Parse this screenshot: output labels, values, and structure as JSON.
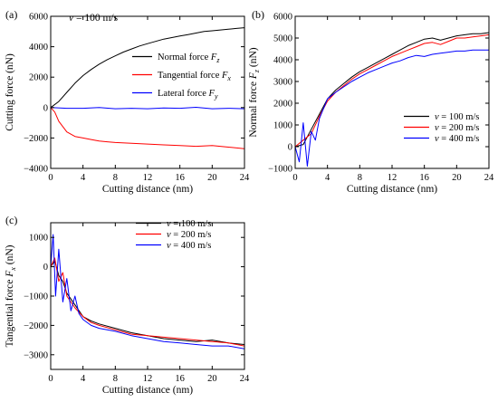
{
  "chart_data": [
    {
      "panel": "(a)",
      "type": "line",
      "annotation": "v = 100 m/s",
      "xlabel": "Cutting distance (nm)",
      "ylabel": "Cutting force (nN)",
      "xlim": [
        0,
        24
      ],
      "ylim": [
        -4000,
        6000
      ],
      "xticks": [
        0,
        4,
        8,
        12,
        16,
        20,
        24
      ],
      "yticks": [
        -4000,
        -2000,
        0,
        2000,
        4000,
        6000
      ],
      "legend_position": "right",
      "series": [
        {
          "name": "Normal force Fz",
          "label_main": "Normal force ",
          "label_sub": "z",
          "color": "#000000",
          "x": [
            0,
            1,
            2,
            3,
            4,
            5,
            6,
            7,
            8,
            9,
            10,
            11,
            12,
            13,
            14,
            15,
            16,
            17,
            18,
            19,
            20,
            21,
            22,
            23,
            24
          ],
          "y": [
            0,
            400,
            1000,
            1600,
            2100,
            2500,
            2850,
            3150,
            3400,
            3650,
            3850,
            4050,
            4200,
            4350,
            4500,
            4600,
            4700,
            4800,
            4900,
            5000,
            5050,
            5100,
            5150,
            5200,
            5250
          ]
        },
        {
          "name": "Tangential force Fx",
          "label_main": "Tangential force ",
          "label_sub": "x",
          "color": "#ff0000",
          "x": [
            0,
            0.5,
            1,
            2,
            3,
            4,
            5,
            6,
            7,
            8,
            10,
            12,
            14,
            16,
            18,
            20,
            22,
            24
          ],
          "y": [
            0,
            -300,
            -900,
            -1600,
            -1900,
            -2000,
            -2100,
            -2200,
            -2250,
            -2300,
            -2350,
            -2400,
            -2450,
            -2500,
            -2550,
            -2500,
            -2600,
            -2700
          ]
        },
        {
          "name": "Lateral force Fy",
          "label_main": "Lateral force ",
          "label_sub": "y",
          "color": "#0000ff",
          "x": [
            0,
            2,
            4,
            6,
            8,
            10,
            12,
            14,
            16,
            18,
            20,
            22,
            24
          ],
          "y": [
            0,
            -50,
            -50,
            0,
            -80,
            -50,
            -80,
            -30,
            -50,
            20,
            -80,
            -50,
            -80
          ]
        }
      ]
    },
    {
      "panel": "(b)",
      "type": "line",
      "xlabel": "Cutting distance (nm)",
      "ylabel": "Normal force Fz (nN)",
      "ylabel_main": "Normal force ",
      "ylabel_var": "F",
      "ylabel_sub": "z",
      "ylabel_unit": " (nN)",
      "xlim": [
        0,
        24
      ],
      "ylim": [
        -1000,
        6000
      ],
      "xticks": [
        0,
        4,
        8,
        12,
        16,
        20,
        24
      ],
      "yticks": [
        -1000,
        0,
        1000,
        2000,
        3000,
        4000,
        5000,
        6000
      ],
      "legend_position": "lower-right",
      "series": [
        {
          "name": "v = 100 m/s",
          "color": "#000000",
          "x": [
            0,
            1,
            2,
            3,
            4,
            5,
            6,
            7,
            8,
            9,
            10,
            11,
            12,
            13,
            14,
            15,
            16,
            17,
            18,
            19,
            20,
            21,
            22,
            23,
            24
          ],
          "y": [
            0,
            100,
            800,
            1500,
            2200,
            2600,
            2900,
            3200,
            3450,
            3650,
            3850,
            4050,
            4250,
            4450,
            4650,
            4800,
            4950,
            5000,
            4900,
            5000,
            5100,
            5150,
            5200,
            5200,
            5250
          ]
        },
        {
          "name": "v = 200 m/s",
          "color": "#ff0000",
          "x": [
            0,
            1,
            2,
            3,
            4,
            5,
            6,
            7,
            8,
            9,
            10,
            11,
            12,
            13,
            14,
            15,
            16,
            17,
            18,
            19,
            20,
            21,
            22,
            23,
            24
          ],
          "y": [
            0,
            300,
            600,
            1400,
            2100,
            2500,
            2800,
            3100,
            3350,
            3550,
            3750,
            3950,
            4150,
            4300,
            4450,
            4600,
            4750,
            4800,
            4700,
            4850,
            5000,
            5000,
            5050,
            5100,
            5150
          ]
        },
        {
          "name": "v = 400 m/s",
          "color": "#0000ff",
          "x": [
            0,
            0.5,
            1,
            1.5,
            2,
            2.5,
            3,
            4,
            5,
            6,
            7,
            8,
            9,
            10,
            11,
            12,
            13,
            14,
            15,
            16,
            17,
            18,
            19,
            20,
            21,
            22,
            23,
            24
          ],
          "y": [
            0,
            -700,
            1100,
            -900,
            700,
            300,
            1300,
            2200,
            2500,
            2750,
            3000,
            3200,
            3400,
            3550,
            3700,
            3850,
            3950,
            4100,
            4200,
            4150,
            4250,
            4300,
            4350,
            4400,
            4400,
            4450,
            4450,
            4450
          ]
        }
      ]
    },
    {
      "panel": "(c)",
      "type": "line",
      "xlabel": "Cutting distance (nm)",
      "ylabel": "Tangential force Fx (nN)",
      "ylabel_main": "Tangential force ",
      "ylabel_var": "F",
      "ylabel_sub": "x",
      "ylabel_unit": " (nN)",
      "xlim": [
        0,
        24
      ],
      "ylim": [
        -3500,
        1500
      ],
      "xticks": [
        0,
        4,
        8,
        12,
        16,
        20,
        24
      ],
      "yticks": [
        -3000,
        -2000,
        -1000,
        0,
        1000
      ],
      "legend_position": "top-right",
      "series": [
        {
          "name": "v = 100 m/s",
          "color": "#000000",
          "x": [
            0,
            0.5,
            1,
            1.5,
            2,
            3,
            4,
            5,
            6,
            8,
            10,
            12,
            14,
            16,
            18,
            20,
            22,
            24
          ],
          "y": [
            0,
            200,
            -300,
            -500,
            -900,
            -1300,
            -1700,
            -1850,
            -1950,
            -2100,
            -2250,
            -2350,
            -2450,
            -2500,
            -2550,
            -2500,
            -2600,
            -2650
          ]
        },
        {
          "name": "v = 200 m/s",
          "color": "#ff0000",
          "x": [
            0,
            0.5,
            1,
            1.5,
            2,
            3,
            4,
            5,
            6,
            8,
            10,
            12,
            14,
            16,
            18,
            20,
            22,
            24
          ],
          "y": [
            0,
            300,
            -500,
            -200,
            -1000,
            -1400,
            -1700,
            -1900,
            -2000,
            -2150,
            -2300,
            -2350,
            -2400,
            -2450,
            -2500,
            -2550,
            -2600,
            -2700
          ]
        },
        {
          "name": "v = 400 m/s",
          "color": "#0000ff",
          "x": [
            0,
            0.3,
            0.6,
            1,
            1.5,
            2,
            2.5,
            3,
            3.5,
            4,
            5,
            6,
            8,
            10,
            12,
            14,
            16,
            18,
            20,
            22,
            24
          ],
          "y": [
            0,
            1100,
            -1000,
            600,
            -1200,
            -400,
            -1500,
            -1000,
            -1600,
            -1800,
            -2000,
            -2100,
            -2200,
            -2350,
            -2450,
            -2550,
            -2600,
            -2650,
            -2700,
            -2700,
            -2800
          ]
        }
      ]
    }
  ]
}
